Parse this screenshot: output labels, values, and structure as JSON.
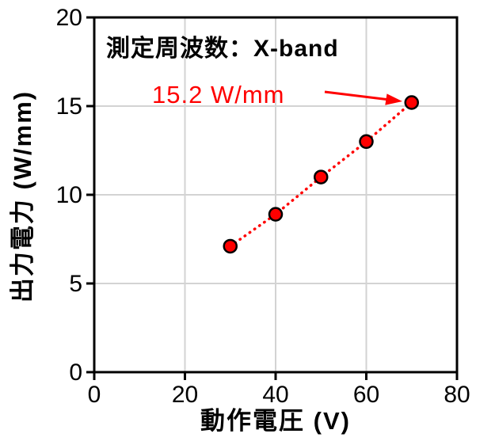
{
  "chart_data": {
    "type": "scatter",
    "xlabel": "動作電圧 (V)",
    "ylabel": "出力電力 (W/mm)",
    "xlim": [
      0,
      80
    ],
    "ylim": [
      0,
      20
    ],
    "xticks": [
      0,
      20,
      40,
      60,
      80
    ],
    "yticks": [
      0,
      5,
      10,
      15,
      20
    ],
    "grid": true,
    "legend": "none",
    "series": [
      {
        "name": "出力電力",
        "x": [
          30,
          40,
          50,
          60,
          70
        ],
        "y": [
          7.1,
          8.9,
          11.0,
          13.0,
          15.2
        ],
        "line_style": "dotted",
        "marker": "circle"
      }
    ],
    "annotations": {
      "frequency_note": "測定周波数：X-band",
      "peak_label": "15.2 W/mm",
      "peak_point": {
        "x": 70,
        "y": 15.2
      }
    },
    "colors": {
      "series": "#FF0000",
      "marker_fill": "#FF0000",
      "marker_border": "#000000",
      "peak_label_text": "#FF0000",
      "annotation_text": "#000000",
      "grid": "#D3D3D3",
      "axis": "#000000",
      "background": "#FFFFFF"
    }
  }
}
